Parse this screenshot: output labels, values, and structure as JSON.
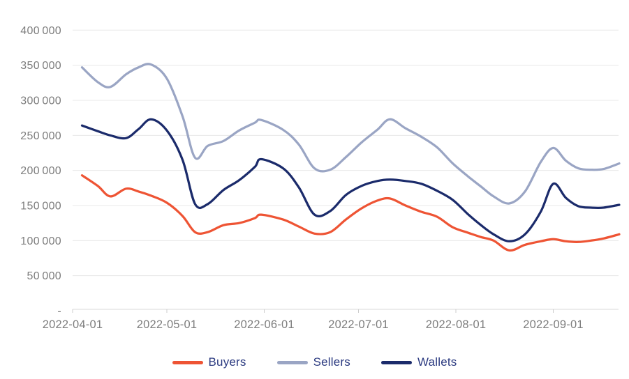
{
  "chart_data": {
    "type": "line",
    "title": "",
    "grid": true,
    "legend_position": "bottom",
    "x_axis": {
      "start_date": "2022-04-01",
      "tick_dates": [
        "2022-04-01",
        "2022-05-01",
        "2022-06-01",
        "2022-07-01",
        "2022-08-01",
        "2022-09-01"
      ],
      "tick_labels": [
        "2022-04-01",
        "2022-05-01",
        "2022-06-01",
        "2022-07-01",
        "2022-08-01",
        "2022-09-01"
      ]
    },
    "y_axis": {
      "min": 0,
      "max": 400000,
      "tick_step": 50000,
      "tick_labels": [
        "-",
        "50 000",
        "100 000",
        "150 000",
        "200 000",
        "250 000",
        "300 000",
        "350 000",
        "400 000"
      ]
    },
    "dates": [
      "2022-04-04",
      "2022-04-09",
      "2022-04-13",
      "2022-04-18",
      "2022-04-22",
      "2022-04-26",
      "2022-05-01",
      "2022-05-06",
      "2022-05-10",
      "2022-05-14",
      "2022-05-19",
      "2022-05-24",
      "2022-05-29",
      "2022-05-31",
      "2022-06-07",
      "2022-06-12",
      "2022-06-17",
      "2022-06-22",
      "2022-06-27",
      "2022-07-02",
      "2022-07-07",
      "2022-07-11",
      "2022-07-16",
      "2022-07-21",
      "2022-07-26",
      "2022-07-31",
      "2022-08-05",
      "2022-08-09",
      "2022-08-13",
      "2022-08-18",
      "2022-08-23",
      "2022-08-28",
      "2022-09-01",
      "2022-09-05",
      "2022-09-09",
      "2022-09-13",
      "2022-09-17",
      "2022-09-22"
    ],
    "series": [
      {
        "name": "Buyers",
        "color": "#ee5434",
        "values": [
          193000,
          178000,
          163000,
          174000,
          170000,
          164000,
          154000,
          135000,
          112000,
          112000,
          122000,
          125000,
          132000,
          137000,
          130000,
          120000,
          110000,
          112000,
          130000,
          146000,
          157000,
          160000,
          150000,
          141000,
          134000,
          119000,
          111000,
          105000,
          100000,
          86000,
          94000,
          99000,
          102000,
          99000,
          98000,
          100000,
          103000,
          109000
        ]
      },
      {
        "name": "Sellers",
        "color": "#9aa5c4",
        "values": [
          347000,
          326000,
          319000,
          337000,
          347000,
          351000,
          331000,
          277000,
          218000,
          235000,
          242000,
          257000,
          268000,
          272000,
          258000,
          237000,
          203000,
          201000,
          219000,
          240000,
          258000,
          273000,
          260000,
          248000,
          233000,
          210000,
          191000,
          177000,
          163000,
          153000,
          170000,
          212000,
          232000,
          214000,
          203000,
          201000,
          202000,
          210000
        ]
      },
      {
        "name": "Wallets",
        "color": "#1b2b6b",
        "values": [
          264000,
          256000,
          250000,
          246000,
          259000,
          273000,
          257000,
          215000,
          152000,
          152000,
          172000,
          186000,
          205000,
          216000,
          203000,
          176000,
          137000,
          142000,
          165000,
          178000,
          185000,
          187000,
          185000,
          181000,
          171000,
          158000,
          137000,
          122000,
          109000,
          99000,
          109000,
          141000,
          181000,
          161000,
          149000,
          147000,
          147000,
          151000
        ]
      }
    ]
  },
  "colors": {
    "background": "#ffffff",
    "gridline": "#e8e8e8",
    "axis_line": "#d9d9d9",
    "axis_text": "#7d7d7d",
    "legend_text": "#2b3a80"
  }
}
